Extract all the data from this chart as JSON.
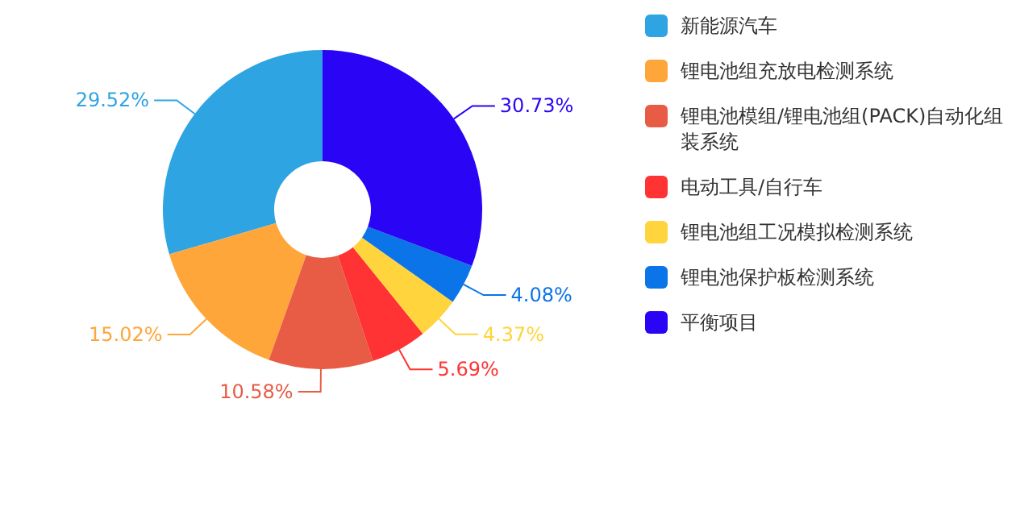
{
  "chart_data": {
    "type": "donut",
    "categories": [
      "新能源汽车",
      "锂电池组充放电检测系统",
      "锂电池模组/锂电池组(PACK)自动化组装系统",
      "电动工具/自行车",
      "锂电池组工况模拟检测系统",
      "锂电池保护板检测系统",
      "平衡项目"
    ],
    "values": [
      29.52,
      15.02,
      10.58,
      5.69,
      4.37,
      4.08,
      30.73
    ],
    "value_labels": [
      "29.52%",
      "15.02%",
      "10.58%",
      "5.69%",
      "4.37%",
      "4.08%",
      "30.73%"
    ],
    "colors": [
      "#2ea4e3",
      "#ffa63a",
      "#e85c45",
      "#ff3333",
      "#ffd43c",
      "#0a74e8",
      "#2a05f5"
    ],
    "legend": "right"
  }
}
